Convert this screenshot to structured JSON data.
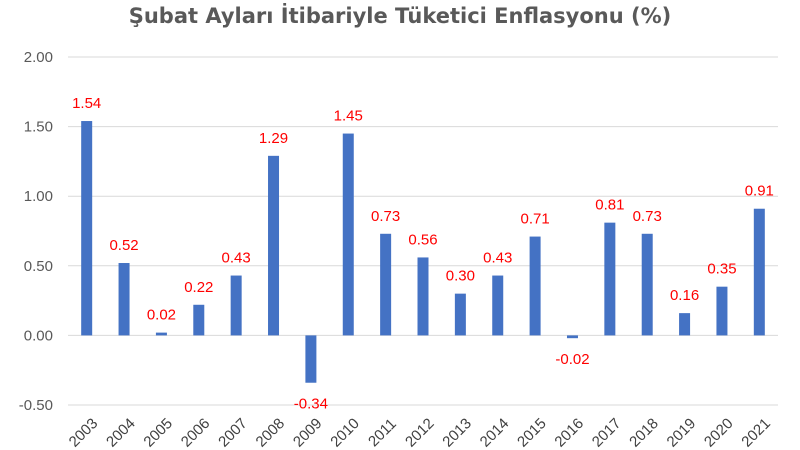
{
  "chart_data": {
    "type": "bar",
    "title": "Şubat Ayları İtibariyle Tüketici Enflasyonu (%)",
    "xlabel": "",
    "ylabel": "",
    "categories": [
      "2003",
      "2004",
      "2005",
      "2006",
      "2007",
      "2008",
      "2009",
      "2010",
      "2011",
      "2012",
      "2013",
      "2014",
      "2015",
      "2016",
      "2017",
      "2018",
      "2019",
      "2020",
      "2021"
    ],
    "values": [
      1.54,
      0.52,
      0.02,
      0.22,
      0.43,
      1.29,
      -0.34,
      1.45,
      0.73,
      0.56,
      0.3,
      0.43,
      0.71,
      -0.02,
      0.81,
      0.73,
      0.16,
      0.35,
      0.91
    ],
    "data_labels": [
      "1.54",
      "0.52",
      "0.02",
      "0.22",
      "0.43",
      "1.29",
      "-0.34",
      "1.45",
      "0.73",
      "0.56",
      "0.30",
      "0.43",
      "0.71",
      "-0.02",
      "0.81",
      "0.73",
      "0.16",
      "0.35",
      "0.91"
    ],
    "ylim": [
      -0.5,
      2.0
    ],
    "yticks": [
      2.0,
      1.5,
      1.0,
      0.5,
      0.0,
      -0.5
    ],
    "ytick_labels": [
      "2.00",
      "1.50",
      "1.00",
      "0.50",
      "0.00",
      "-0.50"
    ],
    "grid": true,
    "legend": "none",
    "bar_color": "#4472C4",
    "label_color": "#FF0000",
    "grid_color": "#D9D9D9"
  }
}
